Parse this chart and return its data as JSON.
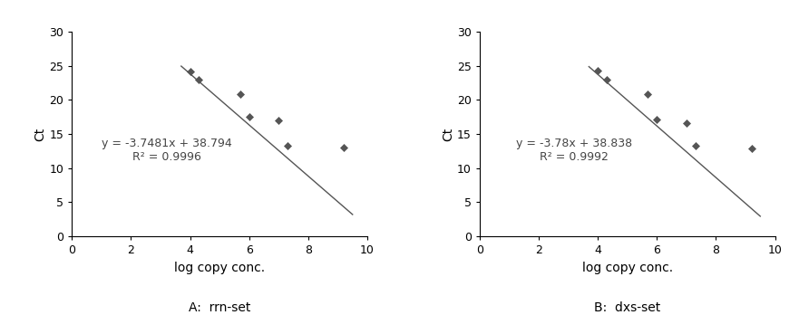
{
  "panels": [
    {
      "label": "A:  rrn-set",
      "line1": "y = -3.7481x + 38.794",
      "line2": "R² = 0.9996",
      "slope": -3.7481,
      "intercept": 38.794,
      "x_data": [
        4.0,
        4.3,
        5.7,
        6.0,
        7.0,
        7.3,
        9.2
      ],
      "y_data": [
        24.1,
        23.0,
        20.8,
        17.5,
        17.0,
        13.2,
        13.0
      ]
    },
    {
      "label": "B:  dxs-set",
      "line1": "y = -3.78x + 38.838",
      "line2": "R² = 0.9992",
      "slope": -3.78,
      "intercept": 38.838,
      "x_data": [
        4.0,
        4.3,
        5.7,
        6.0,
        7.0,
        7.3,
        9.2
      ],
      "y_data": [
        24.3,
        23.0,
        20.8,
        17.1,
        16.6,
        13.2,
        12.9
      ]
    }
  ],
  "xlim": [
    0,
    10
  ],
  "ylim": [
    0,
    30
  ],
  "xticks": [
    0,
    2,
    4,
    6,
    8,
    10
  ],
  "yticks": [
    0,
    5,
    10,
    15,
    20,
    25,
    30
  ],
  "xlabel": "log copy conc.",
  "ylabel": "Ct",
  "marker_color": "#555555",
  "line_color": "#555555",
  "annotation_color": "#444444",
  "annotation_fontsize": 9,
  "label_fontsize": 10,
  "tick_fontsize": 9,
  "figsize": [
    8.81,
    3.48
  ],
  "dpi": 100,
  "x_line_start": 3.7,
  "x_line_end": 9.5
}
